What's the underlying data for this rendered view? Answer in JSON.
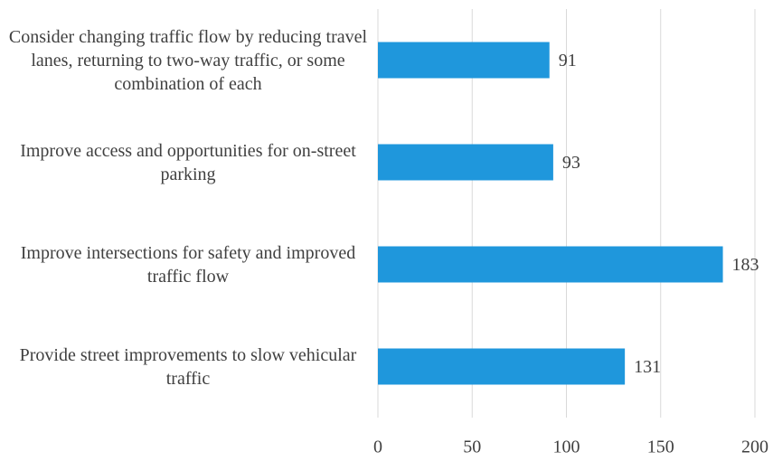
{
  "chart_data": {
    "type": "bar",
    "orientation": "horizontal",
    "categories": [
      "Consider changing traffic flow by reducing travel lanes, returning to two-way traffic, or some combination of each",
      "Improve access and opportunities for on-street parking",
      "Improve intersections for safety and improved traffic flow",
      "Provide street improvements to slow vehicular traffic"
    ],
    "values": [
      91,
      93,
      183,
      131
    ],
    "color": "#1f97dc",
    "xlim": [
      0,
      200
    ],
    "xticks": [
      0,
      50,
      100,
      150,
      200
    ],
    "grid": true
  }
}
